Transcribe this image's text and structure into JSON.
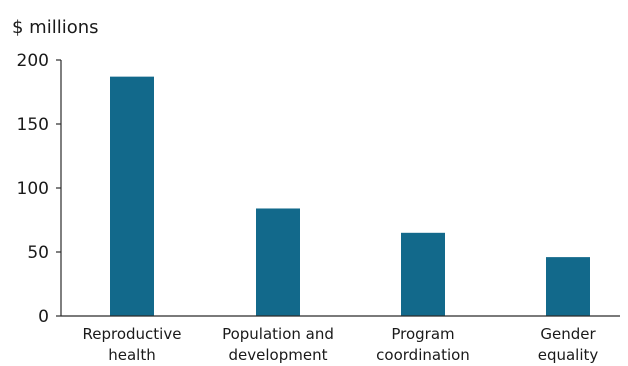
{
  "chart_data": {
    "type": "bar",
    "title": "",
    "ylabel": "$ millions",
    "xlabel": "",
    "categories": [
      [
        "Reproductive",
        "health"
      ],
      [
        "Population and",
        "development"
      ],
      [
        "Program",
        "coordination"
      ],
      [
        "Gender",
        "equality"
      ]
    ],
    "values": [
      187,
      84,
      65,
      46
    ],
    "ylim": [
      0,
      200
    ],
    "yticks": [
      0,
      50,
      100,
      150,
      200
    ],
    "grid": false,
    "legend": "none",
    "bar_color": "#12698b",
    "axis_color": "#2b2b2b"
  }
}
